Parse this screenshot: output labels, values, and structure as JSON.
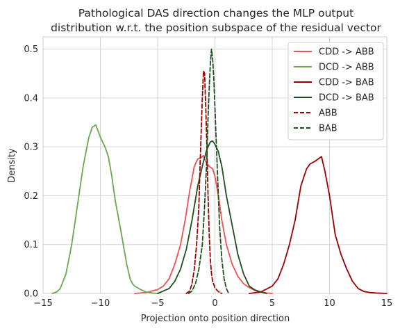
{
  "chart_data": {
    "type": "line",
    "title": "Pathological DAS direction changes the MLP output\ndistribution w.r.t. the position subspace of the residual vector",
    "title_lines": [
      "Pathological DAS direction changes the MLP output",
      "distribution w.r.t. the position subspace of the residual vector"
    ],
    "xlabel": "Projection onto position direction",
    "ylabel": "Density",
    "xlim": [
      -15,
      15
    ],
    "ylim": [
      0,
      0.525
    ],
    "xticks": [
      -15,
      -10,
      -5,
      0,
      5,
      10,
      15
    ],
    "yticks": [
      0.0,
      0.1,
      0.2,
      0.3,
      0.4,
      0.5
    ],
    "xtick_labels": [
      "−15",
      "−10",
      "−5",
      "0",
      "5",
      "10",
      "15"
    ],
    "ytick_labels": [
      "0.0",
      "0.1",
      "0.2",
      "0.3",
      "0.4",
      "0.5"
    ],
    "grid": true,
    "legend_position": "top-right",
    "series": [
      {
        "name": "CDD -> ABB",
        "color": "#f05050",
        "dash": "solid",
        "x": [
          -7.0,
          -6.0,
          -5.0,
          -4.5,
          -4.0,
          -3.5,
          -3.0,
          -2.6,
          -2.2,
          -1.8,
          -1.5,
          -1.2,
          -1.0,
          -0.8,
          -0.5,
          -0.2,
          0.0,
          0.3,
          0.6,
          1.0,
          1.5,
          2.0,
          2.5,
          3.0,
          3.5,
          4.0,
          4.5,
          5.0
        ],
        "y": [
          0.0,
          0.002,
          0.008,
          0.015,
          0.03,
          0.06,
          0.1,
          0.15,
          0.21,
          0.26,
          0.275,
          0.278,
          0.282,
          0.27,
          0.26,
          0.255,
          0.24,
          0.2,
          0.15,
          0.1,
          0.06,
          0.035,
          0.02,
          0.012,
          0.006,
          0.003,
          0.001,
          0.0
        ]
      },
      {
        "name": "DCD -> ABB",
        "color": "#6aa84f",
        "dash": "solid",
        "x": [
          -14.2,
          -13.8,
          -13.5,
          -13.0,
          -12.5,
          -12.0,
          -11.5,
          -11.0,
          -10.7,
          -10.4,
          -10.0,
          -9.6,
          -9.3,
          -9.0,
          -8.7,
          -8.3,
          -8.0,
          -7.7,
          -7.4,
          -7.2,
          -7.0,
          -6.5,
          -6.0,
          -5.5,
          -5.0
        ],
        "y": [
          0.0,
          0.003,
          0.01,
          0.04,
          0.1,
          0.18,
          0.26,
          0.32,
          0.34,
          0.345,
          0.32,
          0.3,
          0.28,
          0.24,
          0.19,
          0.14,
          0.1,
          0.06,
          0.03,
          0.02,
          0.015,
          0.008,
          0.003,
          0.001,
          0.0
        ]
      },
      {
        "name": "CDD -> BAB",
        "color": "#9b0000",
        "dash": "solid",
        "x": [
          3.0,
          4.0,
          5.0,
          5.5,
          6.0,
          6.5,
          7.0,
          7.5,
          8.0,
          8.3,
          8.7,
          9.0,
          9.3,
          9.6,
          10.0,
          10.5,
          11.0,
          11.5,
          12.0,
          12.5,
          13.0,
          13.5,
          14.0,
          15.0
        ],
        "y": [
          0.0,
          0.003,
          0.015,
          0.03,
          0.06,
          0.1,
          0.15,
          0.22,
          0.255,
          0.265,
          0.27,
          0.275,
          0.28,
          0.25,
          0.2,
          0.12,
          0.08,
          0.05,
          0.025,
          0.01,
          0.004,
          0.002,
          0.001,
          0.0
        ]
      },
      {
        "name": "DCD -> BAB",
        "color": "#1e4d1e",
        "dash": "solid",
        "x": [
          -5.0,
          -4.0,
          -3.5,
          -3.0,
          -2.5,
          -2.0,
          -1.5,
          -1.0,
          -0.7,
          -0.4,
          -0.2,
          0.0,
          0.3,
          0.6,
          1.0,
          1.5,
          2.0,
          2.5,
          3.0,
          3.5,
          4.0,
          4.5
        ],
        "y": [
          0.0,
          0.01,
          0.025,
          0.05,
          0.09,
          0.15,
          0.22,
          0.27,
          0.295,
          0.31,
          0.312,
          0.305,
          0.29,
          0.26,
          0.2,
          0.14,
          0.08,
          0.04,
          0.015,
          0.007,
          0.003,
          0.0
        ]
      },
      {
        "name": "ABB",
        "color": "#9b0000",
        "dash": "dashed",
        "x": [
          -2.5,
          -2.2,
          -2.0,
          -1.8,
          -1.6,
          -1.4,
          -1.3,
          -1.2,
          -1.1,
          -1.0,
          -0.9,
          -0.8,
          -0.7,
          -0.6,
          -0.5,
          -0.4,
          -0.3,
          -0.2,
          0.0,
          0.2,
          0.4,
          0.6
        ],
        "y": [
          0.0,
          0.005,
          0.02,
          0.05,
          0.1,
          0.18,
          0.26,
          0.33,
          0.4,
          0.455,
          0.45,
          0.38,
          0.3,
          0.2,
          0.12,
          0.07,
          0.04,
          0.025,
          0.012,
          0.006,
          0.002,
          0.0
        ]
      },
      {
        "name": "BAB",
        "color": "#1e4d1e",
        "dash": "dashed",
        "x": [
          -2.3,
          -2.0,
          -1.7,
          -1.4,
          -1.1,
          -0.9,
          -0.7,
          -0.6,
          -0.5,
          -0.4,
          -0.3,
          -0.2,
          -0.1,
          0.0,
          0.2,
          0.4,
          0.6,
          0.8,
          1.0,
          1.2
        ],
        "y": [
          0.0,
          0.005,
          0.02,
          0.05,
          0.1,
          0.18,
          0.28,
          0.36,
          0.42,
          0.47,
          0.5,
          0.48,
          0.44,
          0.38,
          0.26,
          0.14,
          0.07,
          0.03,
          0.01,
          0.0
        ]
      }
    ]
  }
}
